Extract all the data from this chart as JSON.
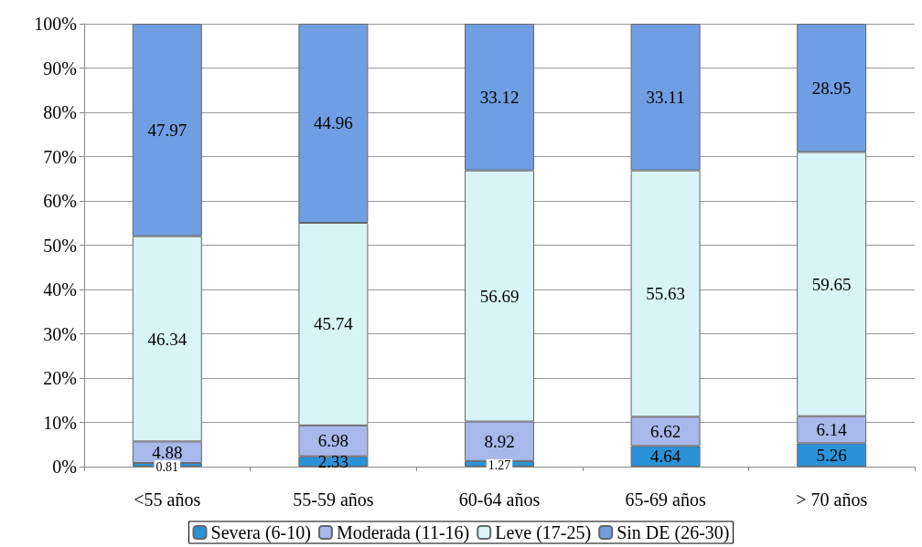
{
  "chart_data": {
    "type": "bar",
    "stacked": true,
    "data_labels": true,
    "grid": "y",
    "legend": "bottom",
    "categories": [
      "<55 años",
      "55-59 años",
      "60-64 años",
      "65-69 años",
      "> 70 años"
    ],
    "ylim": [
      0,
      100
    ],
    "yticks": [
      {
        "value": 0,
        "label": "0%"
      },
      {
        "value": 10,
        "label": "10%"
      },
      {
        "value": 20,
        "label": "20%"
      },
      {
        "value": 30,
        "label": "30%"
      },
      {
        "value": 40,
        "label": "40%"
      },
      {
        "value": 50,
        "label": "50%"
      },
      {
        "value": 60,
        "label": "60%"
      },
      {
        "value": 70,
        "label": "70%"
      },
      {
        "value": 80,
        "label": "80%"
      },
      {
        "value": 90,
        "label": "90%"
      },
      {
        "value": 100,
        "label": "100%"
      }
    ],
    "series": [
      {
        "name": "Severa (6-10)",
        "color": "#2a93d8",
        "values": [
          0.81,
          2.33,
          1.27,
          4.64,
          5.26
        ]
      },
      {
        "name": "Moderada (11-16)",
        "color": "#a8b8ea",
        "values": [
          4.88,
          6.98,
          8.92,
          6.62,
          6.14
        ]
      },
      {
        "name": "Leve (17-25)",
        "color": "#d8f4f7",
        "values": [
          46.34,
          45.74,
          56.69,
          55.63,
          59.65
        ]
      },
      {
        "name": "Sin DE (26-30)",
        "color": "#6f9ee2",
        "values": [
          47.97,
          44.96,
          33.12,
          33.11,
          28.95
        ]
      }
    ]
  }
}
